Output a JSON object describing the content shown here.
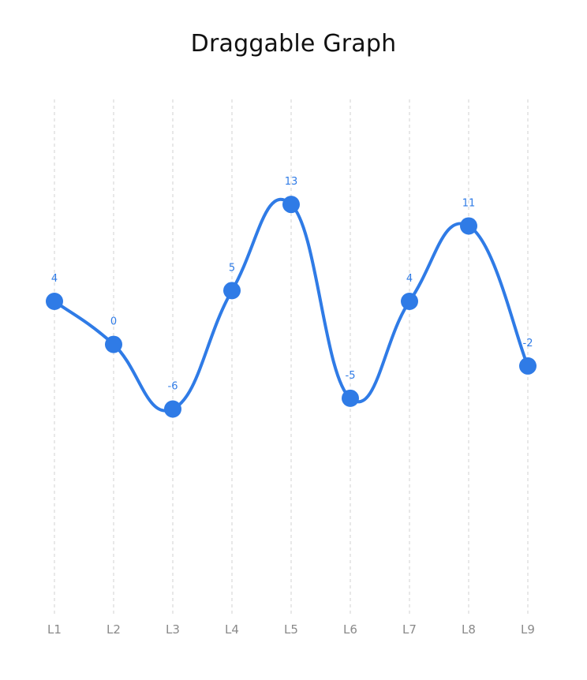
{
  "title": "Draggable Graph",
  "chart_data": {
    "type": "line",
    "title": "Draggable Graph",
    "categories": [
      "L1",
      "L2",
      "L3",
      "L4",
      "L5",
      "L6",
      "L7",
      "L8",
      "L9"
    ],
    "series": [
      {
        "values": [
          4,
          0,
          -6,
          5,
          13,
          -5,
          4,
          11,
          -2
        ]
      }
    ],
    "ylim": [
      -20,
      15
    ],
    "grid": "vertical-dashed",
    "line_style": "smooth",
    "markers": "circle",
    "data_labels": true
  },
  "colors": {
    "accent": "#2f7be6",
    "grid": "#d0d0d0",
    "tick_text": "#8a8a8a"
  }
}
